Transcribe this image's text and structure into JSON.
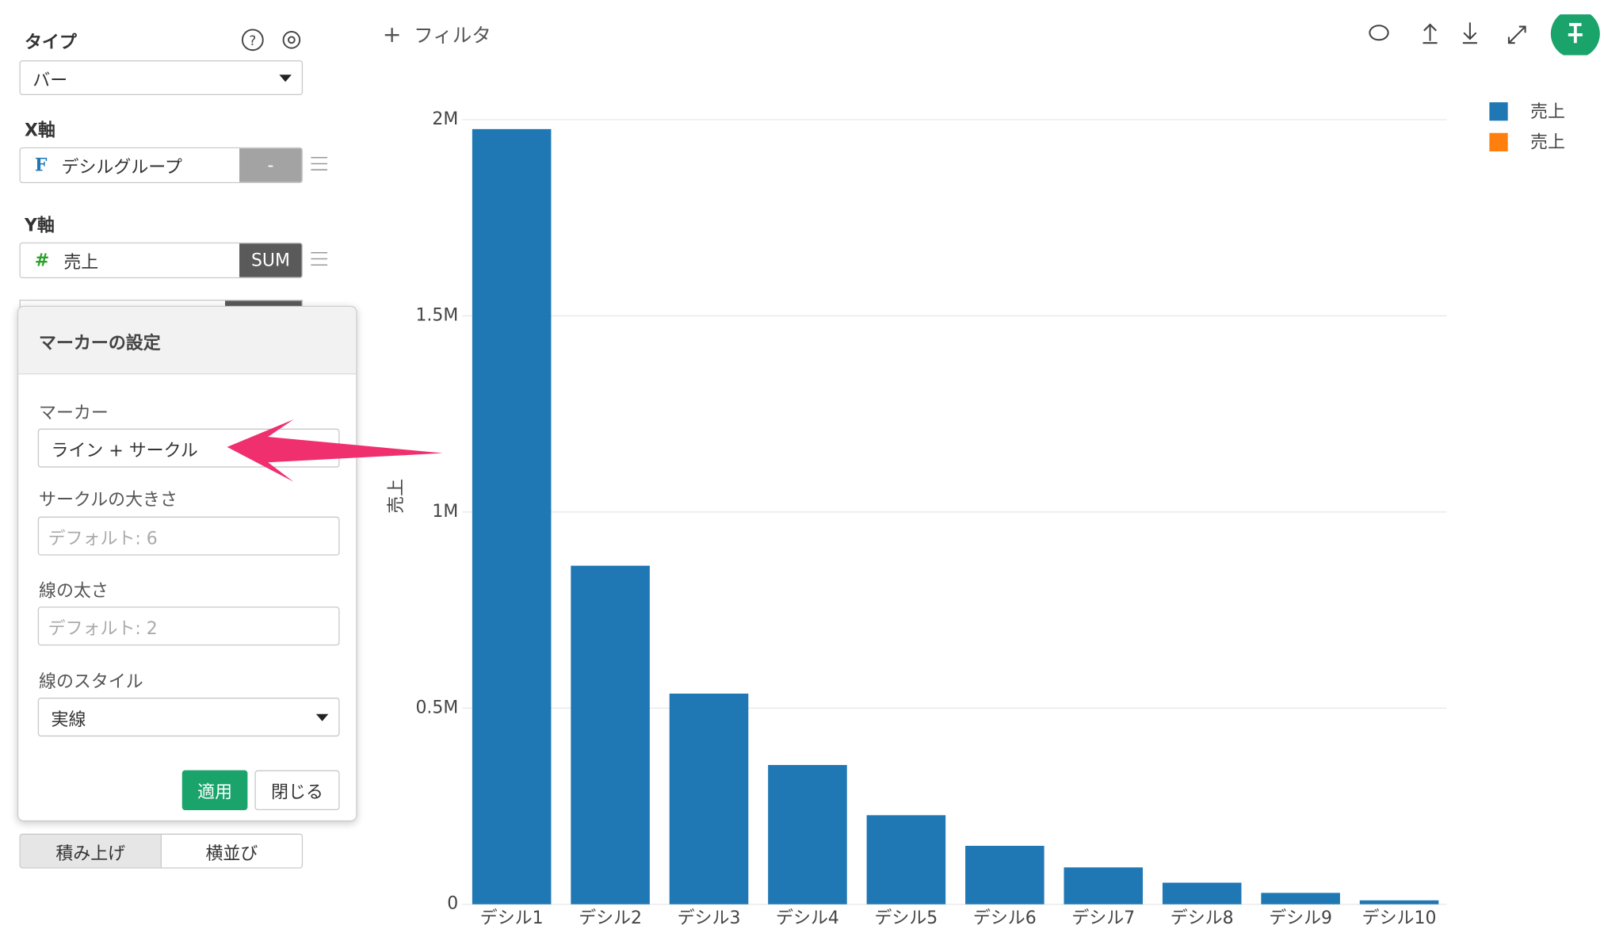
{
  "sidebar": {
    "type_label": "タイプ",
    "type_value": "バー",
    "x_axis_label": "X軸",
    "x_field": {
      "icon": "F",
      "name": "デシルグループ",
      "aggregation": "-"
    },
    "y_axis_label": "Y軸",
    "y_field": {
      "icon": "#",
      "name": "売上",
      "aggregation": "SUM"
    },
    "stack_options": [
      "積み上げ",
      "横並び"
    ]
  },
  "dialog": {
    "title": "マーカーの設定",
    "fields": [
      {
        "label": "マーカー",
        "value": "ライン + サークル"
      },
      {
        "label": "サークルの大きさ",
        "placeholder": "デフォルト: 6"
      },
      {
        "label": "線の太さ",
        "placeholder": "デフォルト: 2"
      },
      {
        "label": "線のスタイル",
        "value": "実線"
      }
    ],
    "buttons": [
      "適用",
      "閉じる"
    ]
  },
  "toolbar": {
    "filter": "フィルタ"
  },
  "chart_data": {
    "type": "bar",
    "y_label": "売上",
    "categories": [
      "デシル1",
      "デシル2",
      "デシル3",
      "デシル4",
      "デシル5",
      "デシル6",
      "デシル7",
      "デシル8",
      "デシル9",
      "デシル10"
    ],
    "series": [
      {
        "name": "売上",
        "color": "#1f77b4",
        "values": [
          1976000,
          863000,
          537000,
          355000,
          227000,
          149000,
          94000,
          55000,
          29000,
          10000
        ]
      },
      {
        "name": "売上",
        "color": "#ff7f0e",
        "values": [
          null,
          null,
          null,
          null,
          null,
          null,
          null,
          null,
          null,
          null
        ]
      }
    ],
    "ylim": [
      0,
      2000000
    ],
    "yticks": [
      0,
      {
        "value": 500000,
        "label": "0.5M"
      },
      {
        "value": 1000000,
        "label": "1M"
      },
      {
        "value": 1500000,
        "label": "1.5M"
      },
      {
        "value": 2000000,
        "label": "2M"
      }
    ],
    "grid": true
  }
}
